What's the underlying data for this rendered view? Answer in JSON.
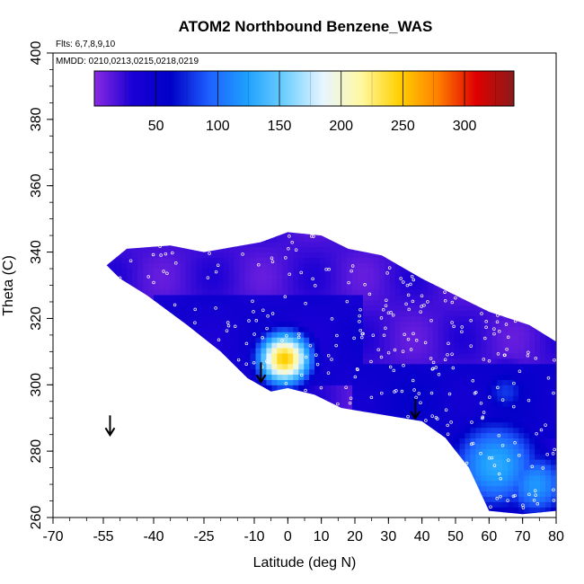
{
  "chart_data": {
    "type": "heatmap",
    "title": "ATOM2 Northbound Benzene_WAS",
    "flights_label": "Flts: 6,7,8,9,10",
    "dates_label": "MMDD: 0210,0213,0215,0218,0219",
    "xlabel": "Latitude (deg N)",
    "ylabel": "Theta (C)",
    "xlim": [
      -70,
      80
    ],
    "ylim": [
      260,
      400
    ],
    "x_ticks": [
      "-70",
      "-55",
      "-40",
      "-25",
      "-10",
      "0",
      "10",
      "20",
      "30",
      "40",
      "50",
      "60",
      "70",
      "80"
    ],
    "y_ticks": [
      "260",
      "280",
      "300",
      "320",
      "340",
      "360",
      "380",
      "400"
    ],
    "colorbar": {
      "ticks": [
        "50",
        "100",
        "150",
        "200",
        "250",
        "300"
      ],
      "range": [
        0,
        340
      ],
      "colors": [
        "#8a2be2",
        "#1a00d4",
        "#0000c8",
        "#1e5fff",
        "#1ea0ff",
        "#6fd0ff",
        "#e8f6ff",
        "#fff8a0",
        "#ffd000",
        "#ff8000",
        "#e00000",
        "#8b1a1a"
      ]
    },
    "coverage_polygon": [
      [
        -54,
        336
      ],
      [
        -48,
        341
      ],
      [
        -35,
        342
      ],
      [
        -25,
        340
      ],
      [
        -8,
        343
      ],
      [
        0,
        346
      ],
      [
        10,
        345
      ],
      [
        18,
        341
      ],
      [
        28,
        339
      ],
      [
        40,
        332
      ],
      [
        50,
        327
      ],
      [
        60,
        322
      ],
      [
        72,
        318
      ],
      [
        80,
        313
      ],
      [
        80,
        262
      ],
      [
        70,
        261
      ],
      [
        60,
        262
      ],
      [
        54,
        275
      ],
      [
        47,
        284
      ],
      [
        40,
        289
      ],
      [
        28,
        291
      ],
      [
        16,
        293
      ],
      [
        8,
        297
      ],
      [
        0,
        299
      ],
      [
        -5,
        298
      ],
      [
        -12,
        302
      ],
      [
        -20,
        310
      ],
      [
        -30,
        318
      ],
      [
        -42,
        327
      ],
      [
        -50,
        332
      ]
    ],
    "background_value": 20,
    "hotspots": [
      {
        "lat": -1,
        "theta": 308,
        "value": 250,
        "spread": 6
      },
      {
        "lat": 62,
        "theta": 276,
        "value": 130,
        "spread": 11
      },
      {
        "lat": 74,
        "theta": 270,
        "value": 120,
        "spread": 8
      },
      {
        "lat": 65,
        "theta": 298,
        "value": 80,
        "spread": 6
      }
    ],
    "bands": [
      {
        "lat_min": -52,
        "lat_max": 80,
        "theta_min": 326,
        "theta_max": 344,
        "value": 8
      },
      {
        "lat_min": -40,
        "lat_max": 22,
        "theta_min": 300,
        "theta_max": 328,
        "value": 40
      },
      {
        "lat_min": 20,
        "lat_max": 80,
        "theta_min": 284,
        "theta_max": 306,
        "value": 48
      }
    ],
    "arrows": [
      {
        "lat": -53,
        "theta": 287
      },
      {
        "lat": -8,
        "theta": 303
      },
      {
        "lat": 38,
        "theta": 292
      }
    ]
  }
}
